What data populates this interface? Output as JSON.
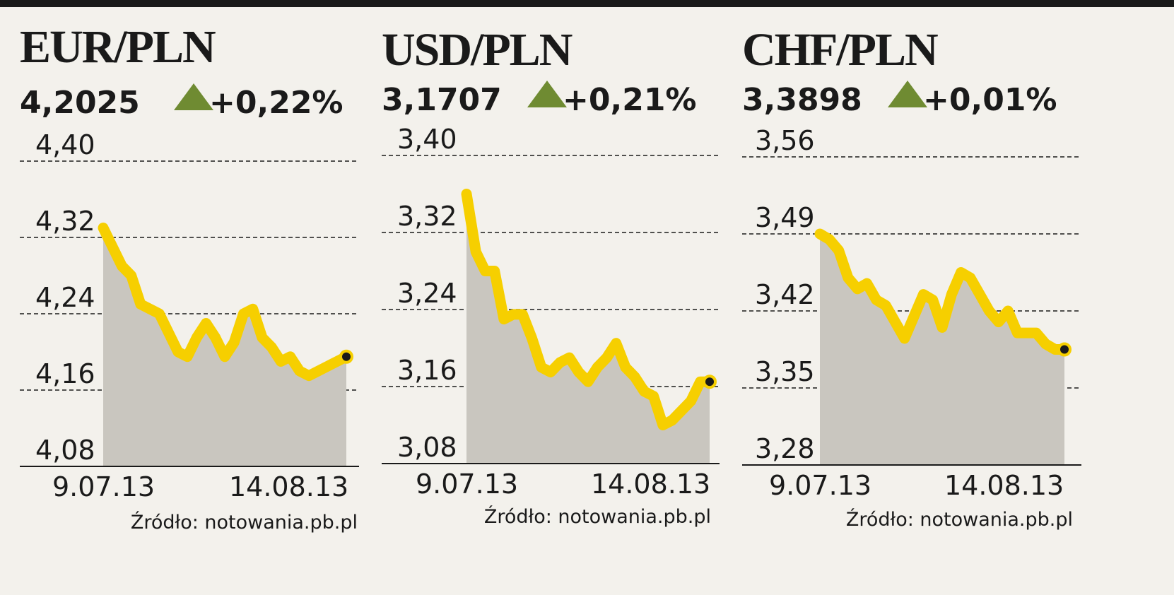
{
  "colors": {
    "background": "#f3f1ec",
    "line": "#f6cf00",
    "area": "#c9c6bf",
    "up_arrow": "#6f8b32",
    "text": "#1a1a1a"
  },
  "source": "Źródło: notowania.pb.pl",
  "chart_data": [
    {
      "type": "area",
      "title": "EUR/PLN",
      "rate": "4,2025",
      "change": "+0,22%",
      "direction_icon": "up-triangle-icon",
      "yticks": [
        "4,40",
        "4,32",
        "4,24",
        "4,16",
        "4,08"
      ],
      "ylim": [
        4.08,
        4.4
      ],
      "xticks": [
        "9.07.13",
        "14.08.13"
      ],
      "grid": true,
      "x": [
        0,
        1,
        2,
        3,
        4,
        5,
        6,
        7,
        8,
        9,
        10,
        11,
        12,
        13,
        14,
        15,
        16,
        17,
        18,
        19,
        20,
        21,
        22,
        23,
        24,
        25,
        26
      ],
      "values": [
        4.33,
        4.31,
        4.29,
        4.28,
        4.25,
        4.245,
        4.24,
        4.22,
        4.2,
        4.195,
        4.215,
        4.23,
        4.215,
        4.195,
        4.21,
        4.24,
        4.245,
        4.215,
        4.205,
        4.19,
        4.195,
        4.18,
        4.175,
        4.18,
        4.185,
        4.19,
        4.195
      ]
    },
    {
      "type": "area",
      "title": "USD/PLN",
      "rate": "3,1707",
      "change": "+0,21%",
      "direction_icon": "up-triangle-icon",
      "yticks": [
        "3,40",
        "3,32",
        "3,24",
        "3,16",
        "3,08"
      ],
      "ylim": [
        3.08,
        3.4
      ],
      "xticks": [
        "9.07.13",
        "14.08.13"
      ],
      "grid": true,
      "x": [
        0,
        1,
        2,
        3,
        4,
        5,
        6,
        7,
        8,
        9,
        10,
        11,
        12,
        13,
        14,
        15,
        16,
        17,
        18,
        19,
        20,
        21,
        22,
        23,
        24,
        25,
        26
      ],
      "values": [
        3.36,
        3.3,
        3.28,
        3.28,
        3.23,
        3.235,
        3.235,
        3.21,
        3.18,
        3.175,
        3.185,
        3.19,
        3.175,
        3.165,
        3.18,
        3.19,
        3.205,
        3.18,
        3.17,
        3.155,
        3.15,
        3.12,
        3.125,
        3.135,
        3.145,
        3.165,
        3.165
      ]
    },
    {
      "type": "area",
      "title": "CHF/PLN",
      "rate": "3,3898",
      "change": "+0,01%",
      "direction_icon": "up-triangle-icon",
      "yticks": [
        "3,56",
        "3,49",
        "3,42",
        "3,35",
        "3,28"
      ],
      "ylim": [
        3.28,
        3.56
      ],
      "xticks": [
        "9.07.13",
        "14.08.13"
      ],
      "grid": true,
      "x": [
        0,
        1,
        2,
        3,
        4,
        5,
        6,
        7,
        8,
        9,
        10,
        11,
        12,
        13,
        14,
        15,
        16,
        17,
        18,
        19,
        20,
        21,
        22,
        23,
        24,
        25,
        26
      ],
      "values": [
        3.49,
        3.485,
        3.475,
        3.45,
        3.44,
        3.445,
        3.43,
        3.425,
        3.41,
        3.395,
        3.415,
        3.435,
        3.43,
        3.405,
        3.435,
        3.455,
        3.45,
        3.435,
        3.42,
        3.41,
        3.42,
        3.4,
        3.4,
        3.4,
        3.39,
        3.385,
        3.385
      ]
    }
  ]
}
